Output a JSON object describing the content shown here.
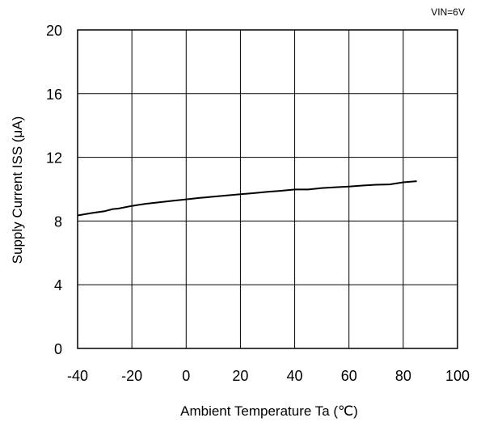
{
  "chart_data": {
    "type": "line",
    "title": "",
    "annotation": "VIN=6V",
    "xlabel": "Ambient Temperature  Ta  (℃)",
    "ylabel": "Supply Current  ISS  (μA)",
    "xlim": [
      -40,
      100
    ],
    "ylim": [
      0,
      20
    ],
    "xticks": [
      -40,
      -20,
      0,
      20,
      40,
      60,
      80,
      100
    ],
    "yticks": [
      0,
      4,
      8,
      12,
      16,
      20
    ],
    "xtick_labels": [
      "-40",
      "-20",
      "0",
      "20",
      "40",
      "60",
      "80",
      "100"
    ],
    "ytick_labels": [
      "0",
      "4",
      "8",
      "12",
      "16",
      "20"
    ],
    "grid": true,
    "legend": "none",
    "series": [
      {
        "color": "#000000",
        "x": [
          -40,
          -35,
          -30,
          -27,
          -25,
          -20,
          -15,
          -10,
          -5,
          0,
          5,
          10,
          15,
          20,
          25,
          30,
          35,
          40,
          45,
          50,
          55,
          60,
          65,
          70,
          75,
          80,
          85
        ],
        "y": [
          8.35,
          8.5,
          8.62,
          8.75,
          8.78,
          8.95,
          9.08,
          9.18,
          9.27,
          9.36,
          9.45,
          9.53,
          9.61,
          9.68,
          9.75,
          9.83,
          9.9,
          9.98,
          9.98,
          10.07,
          10.12,
          10.17,
          10.23,
          10.28,
          10.3,
          10.43,
          10.5
        ]
      }
    ]
  }
}
